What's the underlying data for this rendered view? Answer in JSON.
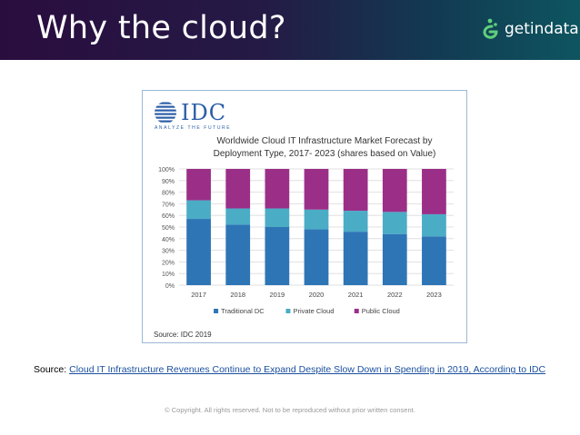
{
  "slide": {
    "title": "Why the cloud?"
  },
  "logo": {
    "name": "getindata"
  },
  "idc": {
    "name": "IDC",
    "tagline": "ANALYZE THE FUTURE",
    "source": "Source: IDC 2019"
  },
  "chart_data": {
    "type": "bar",
    "stacked": true,
    "title": "Worldwide Cloud IT Infrastructure Market Forecast by Deployment Type, 2017- 2023 (shares based on Value)",
    "title_lines": [
      "Worldwide Cloud IT Infrastructure Market Forecast by",
      "Deployment Type, 2017- 2023 (shares based on Value)"
    ],
    "categories": [
      "2017",
      "2018",
      "2019",
      "2020",
      "2021",
      "2022",
      "2023"
    ],
    "yticks": [
      "0%",
      "10%",
      "20%",
      "30%",
      "40%",
      "50%",
      "60%",
      "70%",
      "80%",
      "90%",
      "100%"
    ],
    "ylim": [
      0,
      100
    ],
    "grid": true,
    "legend_position": "bottom",
    "series": [
      {
        "name": "Traditional DC",
        "color": "#2e75b6",
        "values": [
          57,
          52,
          50,
          48,
          46,
          44,
          42
        ]
      },
      {
        "name": "Private Cloud",
        "color": "#4bacc6",
        "values": [
          16,
          14,
          16,
          17,
          18,
          19,
          19
        ]
      },
      {
        "name": "Public Cloud",
        "color": "#9b2f87",
        "values": [
          27,
          34,
          34,
          35,
          36,
          37,
          39
        ]
      }
    ]
  },
  "source": {
    "label": "Source:",
    "link_text": "Cloud IT Infrastructure Revenues Continue to Expand Despite Slow Down in Spending in 2019, According to IDC"
  },
  "footer": {
    "copyright": "© Copyright. All rights reserved. Not to be reproduced without prior written consent."
  },
  "colors": {
    "header_start": "#2a0d3f",
    "header_end": "#0e5560",
    "logo_green": "#5fd07a",
    "link": "#1a4f9e"
  }
}
